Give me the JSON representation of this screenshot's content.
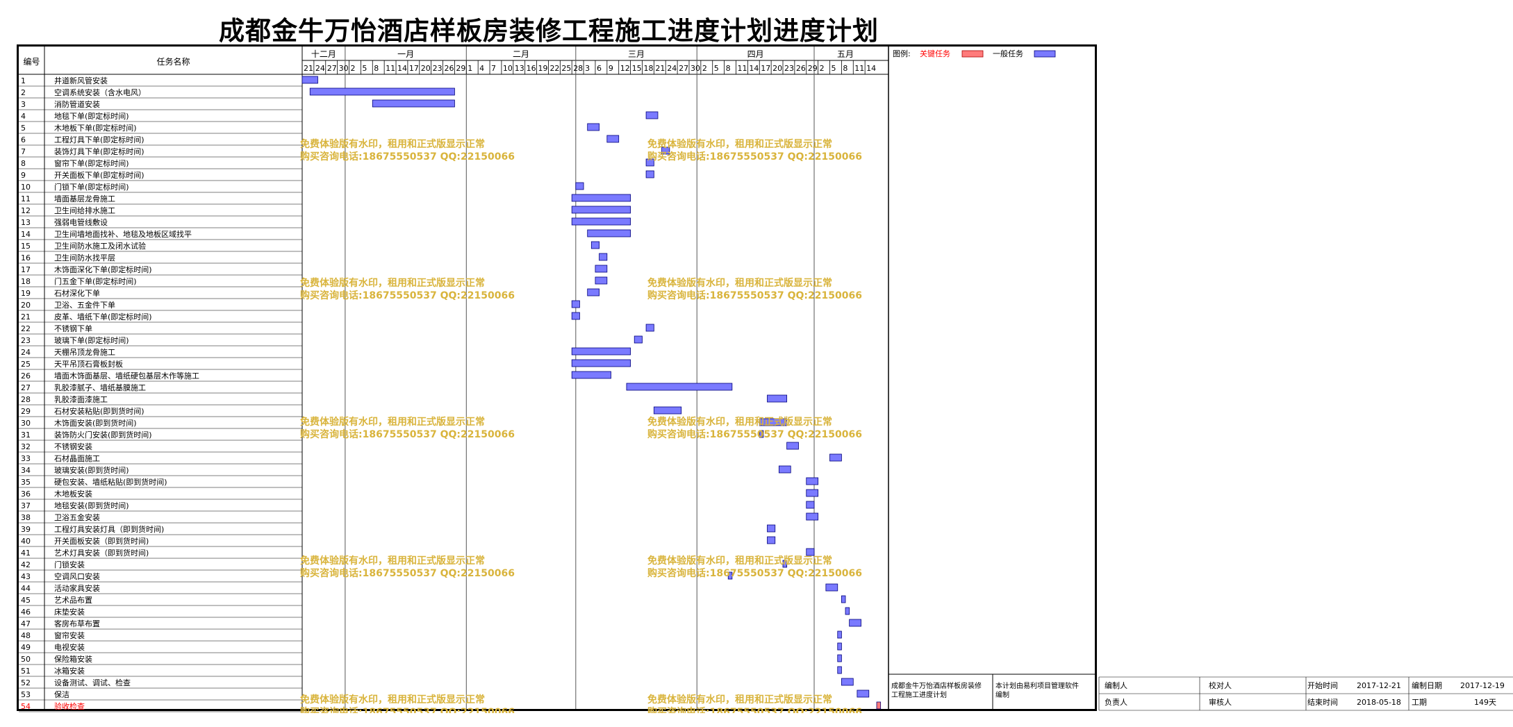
{
  "title": "成都金牛万怡酒店样板房装修工程施工进度计划进度计划",
  "colors": {
    "key_task": "#ff7b7b",
    "general_task": "#7a7aff",
    "bar_border": "#00007a",
    "watermark": "#d9b43c",
    "key_task_label": "#ff0000"
  },
  "headers": {
    "no": "编号",
    "task_name": "任务名称"
  },
  "legend": {
    "label": "图例:",
    "key": "关键任务",
    "general": "一般任务"
  },
  "months": [
    "十二月",
    "一月",
    "二月",
    "三月",
    "四月",
    "五月"
  ],
  "watermark": {
    "line1": "免费体验版有水印，租用和正式版显示正常",
    "line2": "购买咨询电话:18675550537 QQ:22150066"
  },
  "footer": {
    "project_desc": "成都金牛万怡酒店样板房装修工程施工进度计划",
    "software_note": "本计划由易利项目管理软件编制",
    "compiler_label": "编制人",
    "checker_label": "校对人",
    "start_label": "开始时间",
    "start_value": "2017-12-21",
    "compile_date_label": "编制日期",
    "compile_date_value": "2017-12-19",
    "responsible_label": "负责人",
    "reviewer_label": "审核人",
    "end_label": "结束时间",
    "end_value": "2018-05-18",
    "duration_label": "工期",
    "duration_value": "149天"
  },
  "chart_data": {
    "type": "gantt",
    "title": "成都金牛万怡酒店样板房装修工程施工进度计划进度计划",
    "project_start": "2017-12-21",
    "project_end": "2018-05-18",
    "x_ticks": [
      {
        "date": "2017-12-21",
        "label": "21"
      },
      {
        "date": "2017-12-24",
        "label": "24"
      },
      {
        "date": "2017-12-27",
        "label": "27"
      },
      {
        "date": "2017-12-30",
        "label": "30"
      },
      {
        "date": "2018-01-02",
        "label": "2"
      },
      {
        "date": "2018-01-05",
        "label": "5"
      },
      {
        "date": "2018-01-08",
        "label": "8"
      },
      {
        "date": "2018-01-11",
        "label": "11"
      },
      {
        "date": "2018-01-14",
        "label": "14"
      },
      {
        "date": "2018-01-17",
        "label": "17"
      },
      {
        "date": "2018-01-20",
        "label": "20"
      },
      {
        "date": "2018-01-23",
        "label": "23"
      },
      {
        "date": "2018-01-26",
        "label": "26"
      },
      {
        "date": "2018-01-29",
        "label": "29"
      },
      {
        "date": "2018-02-01",
        "label": "1"
      },
      {
        "date": "2018-02-04",
        "label": "4"
      },
      {
        "date": "2018-02-07",
        "label": "7"
      },
      {
        "date": "2018-02-10",
        "label": "10"
      },
      {
        "date": "2018-02-13",
        "label": "13"
      },
      {
        "date": "2018-02-16",
        "label": "16"
      },
      {
        "date": "2018-02-19",
        "label": "19"
      },
      {
        "date": "2018-02-22",
        "label": "22"
      },
      {
        "date": "2018-02-25",
        "label": "25"
      },
      {
        "date": "2018-02-28",
        "label": "28"
      },
      {
        "date": "2018-03-03",
        "label": "3"
      },
      {
        "date": "2018-03-06",
        "label": "6"
      },
      {
        "date": "2018-03-09",
        "label": "9"
      },
      {
        "date": "2018-03-12",
        "label": "12"
      },
      {
        "date": "2018-03-15",
        "label": "15"
      },
      {
        "date": "2018-03-18",
        "label": "18"
      },
      {
        "date": "2018-03-21",
        "label": "21"
      },
      {
        "date": "2018-03-24",
        "label": "24"
      },
      {
        "date": "2018-03-27",
        "label": "27"
      },
      {
        "date": "2018-03-30",
        "label": "30"
      },
      {
        "date": "2018-04-02",
        "label": "2"
      },
      {
        "date": "2018-04-05",
        "label": "5"
      },
      {
        "date": "2018-04-08",
        "label": "8"
      },
      {
        "date": "2018-04-11",
        "label": "11"
      },
      {
        "date": "2018-04-14",
        "label": "14"
      },
      {
        "date": "2018-04-17",
        "label": "17"
      },
      {
        "date": "2018-04-20",
        "label": "20"
      },
      {
        "date": "2018-04-23",
        "label": "23"
      },
      {
        "date": "2018-04-26",
        "label": "26"
      },
      {
        "date": "2018-04-29",
        "label": "29"
      },
      {
        "date": "2018-05-02",
        "label": "2"
      },
      {
        "date": "2018-05-05",
        "label": "5"
      },
      {
        "date": "2018-05-08",
        "label": "8"
      },
      {
        "date": "2018-05-11",
        "label": "11"
      },
      {
        "date": "2018-05-14",
        "label": "14"
      }
    ],
    "month_spans": [
      {
        "label": "十二月",
        "start": "2017-12-21",
        "end": "2018-01-01"
      },
      {
        "label": "一月",
        "start": "2018-01-01",
        "end": "2018-02-01"
      },
      {
        "label": "二月",
        "start": "2018-02-01",
        "end": "2018-03-01"
      },
      {
        "label": "三月",
        "start": "2018-03-01",
        "end": "2018-04-01"
      },
      {
        "label": "四月",
        "start": "2018-04-01",
        "end": "2018-05-01"
      },
      {
        "label": "五月",
        "start": "2018-05-01",
        "end": "2018-05-17"
      }
    ],
    "tasks": [
      {
        "id": "1",
        "name": "井道新风管安装",
        "start": "2017-12-21",
        "end": "2017-12-25",
        "key": false
      },
      {
        "id": "2",
        "name": "空调系统安装（含水电风）",
        "start": "2017-12-23",
        "end": "2018-01-29",
        "key": false
      },
      {
        "id": "3",
        "name": "消防管道安装",
        "start": "2018-01-08",
        "end": "2018-01-29",
        "key": false
      },
      {
        "id": "4",
        "name": "地毯下单(即定标时间)",
        "start": "2018-03-19",
        "end": "2018-03-22",
        "key": false
      },
      {
        "id": "5",
        "name": "木地板下单(即定标时间)",
        "start": "2018-03-04",
        "end": "2018-03-07",
        "key": false
      },
      {
        "id": "6",
        "name": "工程灯具下单(即定标时间)",
        "start": "2018-03-09",
        "end": "2018-03-12",
        "key": false
      },
      {
        "id": "7",
        "name": "装饰灯具下单(即定标时间)",
        "start": "2018-03-23",
        "end": "2018-03-25",
        "key": false
      },
      {
        "id": "8",
        "name": "窗帘下单(即定标时间)",
        "start": "2018-03-19",
        "end": "2018-03-21",
        "key": false
      },
      {
        "id": "9",
        "name": "开关面板下单(即定标时间)",
        "start": "2018-03-19",
        "end": "2018-03-21",
        "key": false
      },
      {
        "id": "10",
        "name": "门锁下单(即定标时间)",
        "start": "2018-03-01",
        "end": "2018-03-03",
        "key": false
      },
      {
        "id": "11",
        "name": "墙面基层龙骨施工",
        "start": "2018-02-28",
        "end": "2018-03-15",
        "key": false
      },
      {
        "id": "12",
        "name": "卫生间给排水施工",
        "start": "2018-02-28",
        "end": "2018-03-15",
        "key": false
      },
      {
        "id": "13",
        "name": "强弱电管线敷设",
        "start": "2018-02-28",
        "end": "2018-03-15",
        "key": false
      },
      {
        "id": "14",
        "name": "卫生间墙地面找补、地毯及地板区域找平",
        "start": "2018-03-04",
        "end": "2018-03-15",
        "key": false
      },
      {
        "id": "15",
        "name": "卫生间防水施工及闭水试验",
        "start": "2018-03-05",
        "end": "2018-03-07",
        "key": false
      },
      {
        "id": "16",
        "name": "卫生间防水找平层",
        "start": "2018-03-07",
        "end": "2018-03-09",
        "key": false
      },
      {
        "id": "17",
        "name": "木饰面深化下单(即定标时间)",
        "start": "2018-03-06",
        "end": "2018-03-09",
        "key": false
      },
      {
        "id": "18",
        "name": "门五金下单(即定标时间)",
        "start": "2018-03-06",
        "end": "2018-03-09",
        "key": false
      },
      {
        "id": "19",
        "name": "石材深化下单",
        "start": "2018-03-04",
        "end": "2018-03-07",
        "key": false
      },
      {
        "id": "20",
        "name": "卫浴、五金件下单",
        "start": "2018-02-28",
        "end": "2018-03-02",
        "key": false
      },
      {
        "id": "21",
        "name": "皮革、墙纸下单(即定标时间)",
        "start": "2018-02-28",
        "end": "2018-03-02",
        "key": false
      },
      {
        "id": "22",
        "name": "不锈钢下单",
        "start": "2018-03-19",
        "end": "2018-03-21",
        "key": false
      },
      {
        "id": "23",
        "name": "玻璃下单(即定标时间)",
        "start": "2018-03-16",
        "end": "2018-03-18",
        "key": false
      },
      {
        "id": "24",
        "name": "天棚吊顶龙骨施工",
        "start": "2018-02-28",
        "end": "2018-03-15",
        "key": false
      },
      {
        "id": "25",
        "name": "天平吊顶石膏板封板",
        "start": "2018-02-28",
        "end": "2018-03-15",
        "key": false
      },
      {
        "id": "26",
        "name": "墙面木饰面基层、墙纸硬包基层木作等施工",
        "start": "2018-02-28",
        "end": "2018-03-10",
        "key": false
      },
      {
        "id": "27",
        "name": "乳胶漆腻子、墙纸基膜施工",
        "start": "2018-03-14",
        "end": "2018-04-10",
        "key": false
      },
      {
        "id": "28",
        "name": "乳胶漆面漆施工",
        "start": "2018-04-19",
        "end": "2018-04-24",
        "key": false
      },
      {
        "id": "29",
        "name": "石材安装粘贴(即到货时间)",
        "start": "2018-03-21",
        "end": "2018-03-28",
        "key": false
      },
      {
        "id": "30",
        "name": "木饰面安装(即到货时间)",
        "start": "2018-04-17",
        "end": "2018-04-24",
        "key": false
      },
      {
        "id": "31",
        "name": "装饰防火门安装(即到货时间)",
        "start": "2018-04-17",
        "end": "2018-04-18",
        "key": false
      },
      {
        "id": "32",
        "name": "不锈钢安装",
        "start": "2018-04-24",
        "end": "2018-04-27",
        "key": false
      },
      {
        "id": "33",
        "name": "石材晶面施工",
        "start": "2018-05-05",
        "end": "2018-05-08",
        "key": false
      },
      {
        "id": "34",
        "name": "玻璃安装(即到货时间)",
        "start": "2018-04-22",
        "end": "2018-04-25",
        "key": false
      },
      {
        "id": "35",
        "name": "硬包安装、墙纸粘贴(即到货时间)",
        "start": "2018-04-29",
        "end": "2018-05-02",
        "key": false
      },
      {
        "id": "36",
        "name": "木地板安装",
        "start": "2018-04-29",
        "end": "2018-05-02",
        "key": false
      },
      {
        "id": "37",
        "name": "地毯安装(即到货时间)",
        "start": "2018-04-29",
        "end": "2018-05-01",
        "key": false
      },
      {
        "id": "38",
        "name": "卫浴五金安装",
        "start": "2018-04-29",
        "end": "2018-05-02",
        "key": false
      },
      {
        "id": "39",
        "name": "工程灯具安装灯具（即到货时间)",
        "start": "2018-04-19",
        "end": "2018-04-21",
        "key": false
      },
      {
        "id": "40",
        "name": "开关面板安装（即到货时间)",
        "start": "2018-04-19",
        "end": "2018-04-21",
        "key": false
      },
      {
        "id": "41",
        "name": "艺术灯具安装（即到货时间)",
        "start": "2018-04-29",
        "end": "2018-05-01",
        "key": false
      },
      {
        "id": "42",
        "name": "门锁安装",
        "start": "2018-04-23",
        "end": "2018-04-24",
        "key": false
      },
      {
        "id": "43",
        "name": "空调风口安装",
        "start": "2018-04-09",
        "end": "2018-04-10",
        "key": false
      },
      {
        "id": "44",
        "name": "活动家具安装",
        "start": "2018-05-04",
        "end": "2018-05-07",
        "key": false
      },
      {
        "id": "45",
        "name": "艺术品布置",
        "start": "2018-05-08",
        "end": "2018-05-09",
        "key": false
      },
      {
        "id": "46",
        "name": "床垫安装",
        "start": "2018-05-09",
        "end": "2018-05-10",
        "key": false
      },
      {
        "id": "47",
        "name": "客房布草布置",
        "start": "2018-05-10",
        "end": "2018-05-13",
        "key": false
      },
      {
        "id": "48",
        "name": "窗帘安装",
        "start": "2018-05-07",
        "end": "2018-05-08",
        "key": false
      },
      {
        "id": "49",
        "name": "电视安装",
        "start": "2018-05-07",
        "end": "2018-05-08",
        "key": false
      },
      {
        "id": "50",
        "name": "保险箱安装",
        "start": "2018-05-07",
        "end": "2018-05-08",
        "key": false
      },
      {
        "id": "51",
        "name": "冰箱安装",
        "start": "2018-05-07",
        "end": "2018-05-08",
        "key": false
      },
      {
        "id": "52",
        "name": "设备测试、调试、检查",
        "start": "2018-05-08",
        "end": "2018-05-11",
        "key": false
      },
      {
        "id": "53",
        "name": "保洁",
        "start": "2018-05-12",
        "end": "2018-05-15",
        "key": false
      },
      {
        "id": "54",
        "name": "验收检查",
        "start": "2018-05-17",
        "end": "2018-05-18",
        "key": true
      }
    ]
  }
}
